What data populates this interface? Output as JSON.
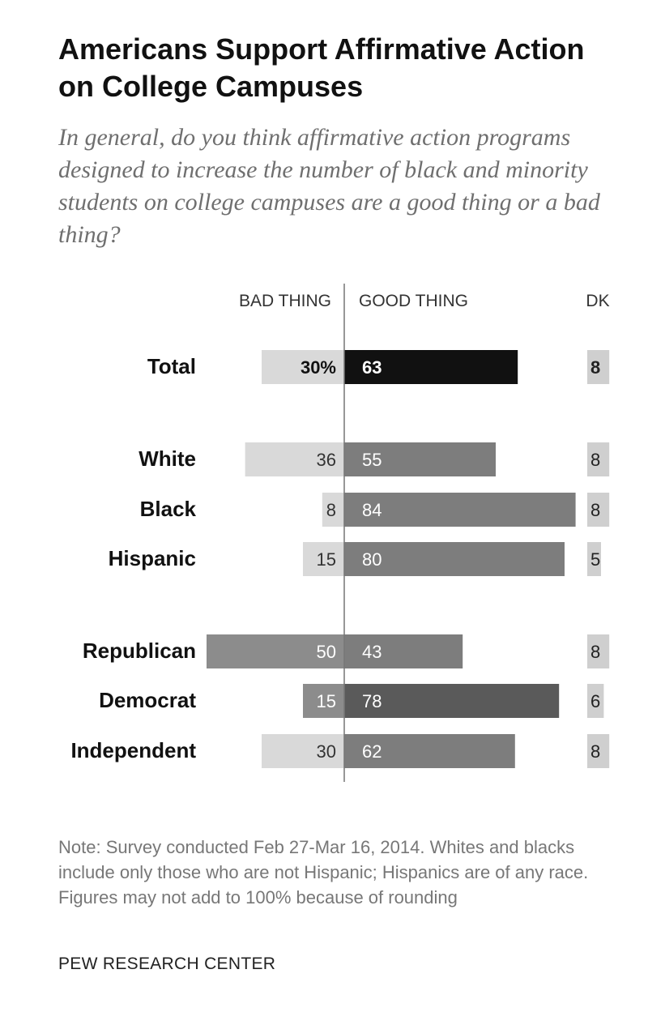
{
  "title": "Americans Support Affirmative Action on College Campuses",
  "subtitle": "In general, do you think affirmative action programs designed to increase the number of black and minority students on college campuses are a good thing or a bad thing?",
  "note": "Note: Survey conducted Feb 27-Mar 16, 2014. Whites and blacks include only those who are not Hispanic; Hispanics are of any race. Figures may not add to 100% because of rounding",
  "source": "PEW RESEARCH CENTER",
  "colors": {
    "bad_light": "#d9d9d9",
    "bad_dark": "#8c8c8c",
    "good_total": "#111111",
    "good_mid": "#7d7d7d",
    "good_dark": "#5a5a5a",
    "dk": "#cfcfcf",
    "axis": "#777777"
  },
  "chart_data": {
    "type": "bar",
    "orientation": "horizontal-diverging",
    "title": "Americans Support Affirmative Action on College Campuses",
    "headers": {
      "bad": "BAD THING",
      "good": "GOOD THING",
      "dk": "DK"
    },
    "categories": [
      "Total",
      "White",
      "Black",
      "Hispanic",
      "Republican",
      "Democrat",
      "Independent"
    ],
    "groups": [
      [
        "Total"
      ],
      [
        "White",
        "Black",
        "Hispanic"
      ],
      [
        "Republican",
        "Democrat",
        "Independent"
      ]
    ],
    "series": [
      {
        "name": "BAD THING",
        "values": [
          30,
          36,
          8,
          15,
          50,
          15,
          30
        ],
        "labels": [
          "30%",
          "36",
          "8",
          "15",
          "50",
          "15",
          "30"
        ]
      },
      {
        "name": "GOOD THING",
        "values": [
          63,
          55,
          84,
          80,
          43,
          78,
          62
        ],
        "labels": [
          "63",
          "55",
          "84",
          "80",
          "43",
          "78",
          "62"
        ]
      },
      {
        "name": "DK",
        "values": [
          8,
          8,
          8,
          5,
          8,
          6,
          8
        ],
        "labels": [
          "8",
          "8",
          "8",
          "5",
          "8",
          "6",
          "8"
        ]
      }
    ],
    "unit": "%",
    "xlim": [
      0,
      100
    ]
  }
}
